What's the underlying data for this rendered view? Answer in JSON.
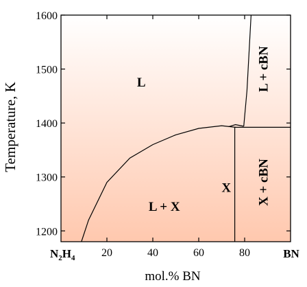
{
  "chart_data": {
    "type": "phase_diagram",
    "title": "",
    "xlabel": "mol.% BN",
    "ylabel": "Temperature, K",
    "xlim": [
      0,
      100
    ],
    "ylim": [
      1180,
      1600
    ],
    "x_ticks": [
      {
        "value": 20,
        "label": "20"
      },
      {
        "value": 40,
        "label": "40"
      },
      {
        "value": 60,
        "label": "60"
      },
      {
        "value": 80,
        "label": "80"
      }
    ],
    "y_ticks": [
      {
        "value": 1200,
        "label": "1200"
      },
      {
        "value": 1300,
        "label": "1300"
      },
      {
        "value": 1400,
        "label": "1400"
      },
      {
        "value": 1500,
        "label": "1500"
      },
      {
        "value": 1600,
        "label": "1600"
      }
    ],
    "x_end_labels": {
      "left": {
        "main": "N",
        "sub1": "2",
        "mid": "H",
        "sub2": "4"
      },
      "right": "BN"
    },
    "region_labels": [
      {
        "text": "L",
        "x": 35,
        "y": 1475,
        "rotated": false
      },
      {
        "text": "L + X",
        "x": 45,
        "y": 1245,
        "rotated": false
      },
      {
        "text": "X",
        "x": 72,
        "y": 1280,
        "rotated": false
      },
      {
        "text": "L + cBN",
        "x": 90,
        "y": 1500,
        "rotated": true
      },
      {
        "text": "X + cBN",
        "x": 90,
        "y": 1290,
        "rotated": true
      }
    ],
    "curves": [
      {
        "name": "liquidus",
        "points": [
          [
            8.9,
            1180
          ],
          [
            12,
            1220
          ],
          [
            20,
            1290
          ],
          [
            30,
            1335
          ],
          [
            40,
            1360
          ],
          [
            50,
            1378
          ],
          [
            60,
            1390
          ],
          [
            70,
            1395
          ],
          [
            74,
            1393
          ],
          [
            76,
            1392
          ]
        ]
      },
      {
        "name": "eutectic-upper",
        "points": [
          [
            73,
            1393
          ],
          [
            76,
            1397
          ],
          [
            79.6,
            1394
          ]
        ]
      },
      {
        "name": "cbn-liquidus",
        "points": [
          [
            79.6,
            1394
          ],
          [
            81,
            1460
          ],
          [
            82.8,
            1600
          ]
        ]
      },
      {
        "name": "eutectic-line",
        "points": [
          [
            75.7,
            1392
          ],
          [
            100,
            1392
          ]
        ]
      },
      {
        "name": "x-phase-line",
        "points": [
          [
            75.7,
            1180
          ],
          [
            75.7,
            1392
          ]
        ]
      }
    ],
    "background": {
      "top": "#ffffff",
      "bottom": "#ffc8ae"
    }
  }
}
